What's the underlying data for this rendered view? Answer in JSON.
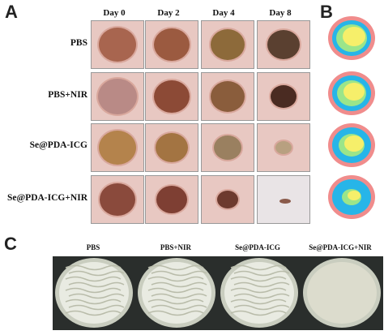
{
  "panels": {
    "a": "A",
    "b": "B",
    "c": "C"
  },
  "columns": [
    "Day 0",
    "Day 2",
    "Day 4",
    "Day 8"
  ],
  "rows": [
    "PBS",
    "PBS+NIR",
    "Se@PDA-ICG",
    "Se@PDA-ICG+NIR"
  ],
  "plates": [
    "PBS",
    "PBS+NIR",
    "Se@PDA-ICG",
    "Se@PDA-ICG+NIR"
  ],
  "colors": {
    "trace_pink": "#f08c8c",
    "trace_cyan": "#27b5e8",
    "trace_green": "#9be58a",
    "trace_yellow": "#f6ef6a",
    "skin": "#e8c8c2",
    "plate_colony": "#e9ebe2"
  }
}
